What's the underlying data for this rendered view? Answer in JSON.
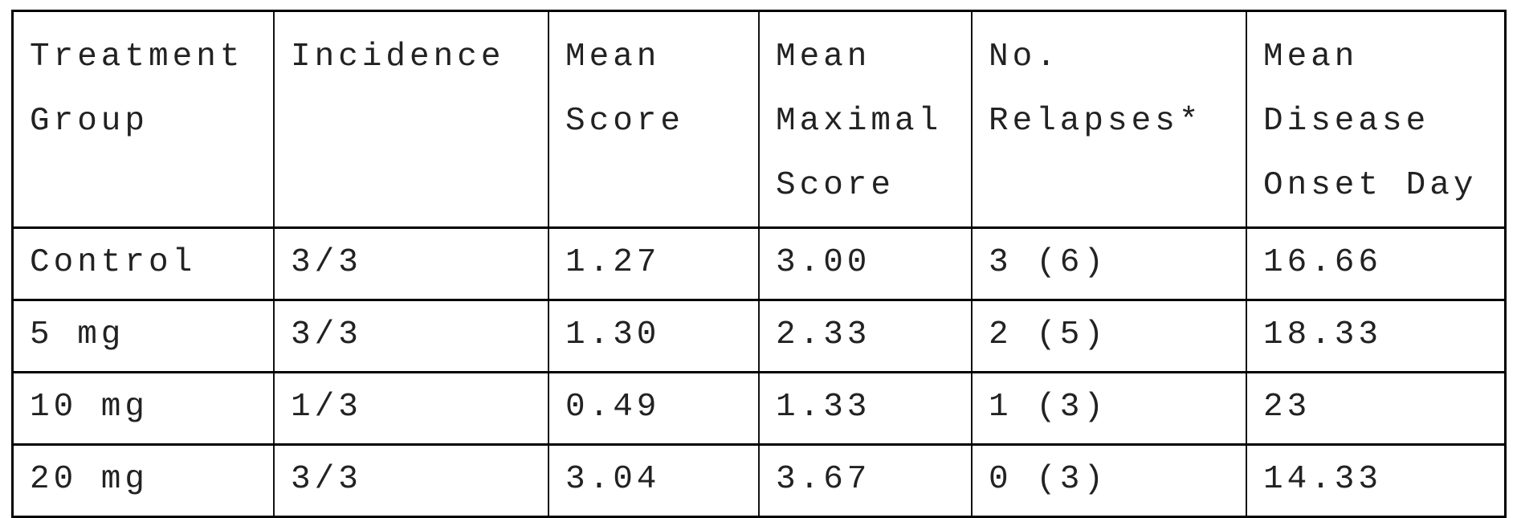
{
  "table": {
    "headers": [
      "Treatment\nGroup",
      "Incidence",
      "Mean\nScore",
      "Mean\nMaximal\nScore",
      "No.\nRelapses*",
      "Mean\nDisease\nOnset Day"
    ],
    "rows": [
      [
        "Control",
        "3/3",
        "1.27",
        "3.00",
        "3 (6)",
        "16.66"
      ],
      [
        "5 mg",
        "3/3",
        "1.30",
        "2.33",
        "2 (5)",
        "18.33"
      ],
      [
        "10 mg",
        "1/3",
        "0.49",
        "1.33",
        "1 (3)",
        "23"
      ],
      [
        "20 mg",
        "3/3",
        "3.04",
        "3.67",
        "0 (3)",
        "14.33"
      ]
    ]
  }
}
